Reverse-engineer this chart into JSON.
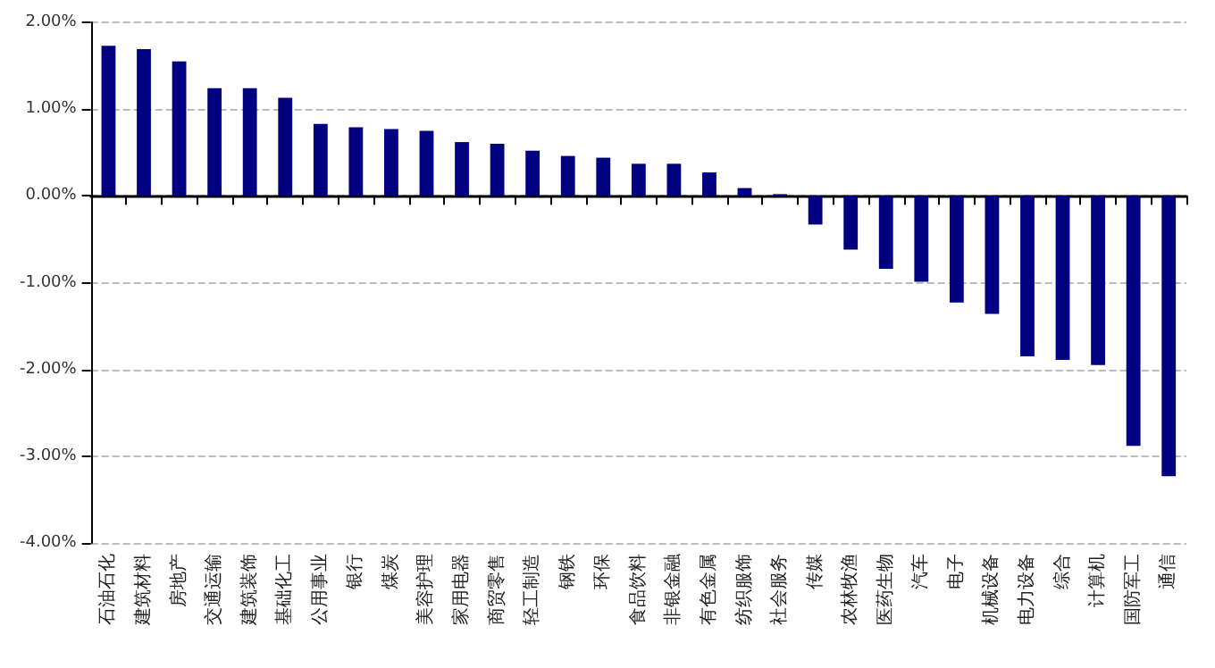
{
  "chart_data": {
    "type": "bar",
    "categories": [
      "石油石化",
      "建筑材料",
      "房地产",
      "交通运输",
      "建筑装饰",
      "基础化工",
      "公用事业",
      "银行",
      "煤炭",
      "美容护理",
      "家用电器",
      "商贸零售",
      "轻工制造",
      "钢铁",
      "环保",
      "食品饮料",
      "非银金融",
      "有色金属",
      "纺织服饰",
      "社会服务",
      "传媒",
      "农林牧渔",
      "医药生物",
      "汽车",
      "电子",
      "机械设备",
      "电力设备",
      "综合",
      "计算机",
      "国防军工",
      "通信"
    ],
    "series": [
      {
        "color": "#000080",
        "values": [
          1.73,
          1.69,
          1.55,
          1.24,
          1.24,
          1.13,
          0.83,
          0.79,
          0.77,
          0.75,
          0.62,
          0.6,
          0.52,
          0.46,
          0.44,
          0.37,
          0.37,
          0.27,
          0.09,
          0.02,
          -0.33,
          -0.62,
          -0.84,
          -0.99,
          -1.23,
          -1.36,
          -1.85,
          -1.89,
          -1.95,
          -2.88,
          -3.23
        ]
      }
    ],
    "ylim": [
      -4,
      2
    ],
    "yticks": [
      {
        "value": -4,
        "label": "-4.00%"
      },
      {
        "value": -3,
        "label": "-3.00%"
      },
      {
        "value": -2,
        "label": "-2.00%"
      },
      {
        "value": -1,
        "label": "-1.00%"
      },
      {
        "value": 0,
        "label": "0.00%"
      },
      {
        "value": 1,
        "label": "1.00%"
      },
      {
        "value": 2,
        "label": "2.00%"
      }
    ],
    "grid": "y"
  }
}
